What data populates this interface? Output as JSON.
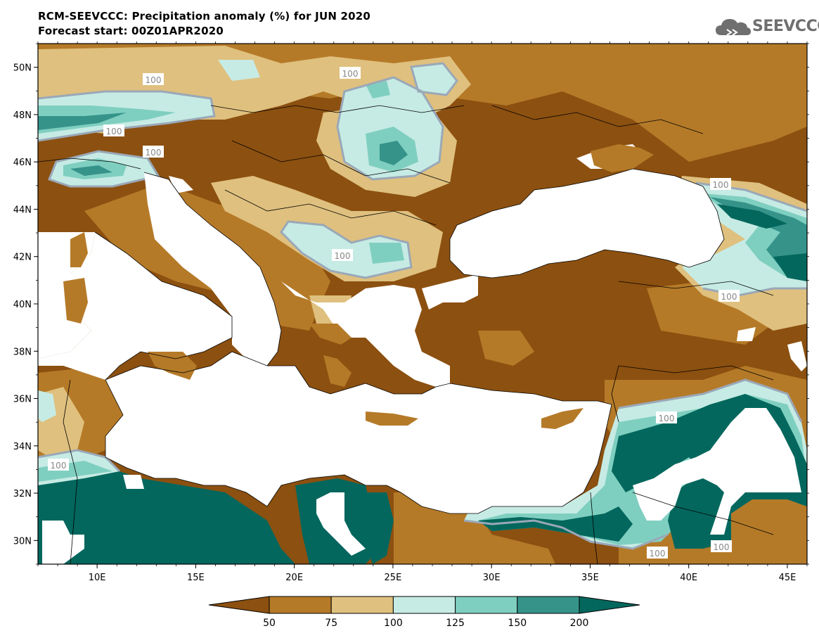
{
  "title": {
    "line1": "RCM-SEEVCCC: Precipitation anomaly (%) for JUN 2020",
    "line2": "Forecast start: 00Z01APR2020"
  },
  "logo": {
    "text": "SEEVCCC",
    "icon": "cloud-icon"
  },
  "map": {
    "lon_range": [
      7,
      46
    ],
    "lat_range": [
      29,
      51
    ],
    "lon_ticks": [
      "10E",
      "15E",
      "20E",
      "25E",
      "30E",
      "35E",
      "40E",
      "45E"
    ],
    "lat_ticks": [
      "50N",
      "48N",
      "46N",
      "44N",
      "42N",
      "40N",
      "38N",
      "36N",
      "34N",
      "32N",
      "30N"
    ],
    "contour_label": "100",
    "colors": {
      "below_50": "#8c5010",
      "50_75": "#b57a28",
      "75_100": "#dfc07e",
      "100_125": "#c6ebe4",
      "125_150": "#7fcfc0",
      "150_200": "#35938a",
      "above_200": "#03675d",
      "sea": "#ffffff",
      "contour_100": "#9aa8b8"
    }
  },
  "colorbar": {
    "labels": [
      "50",
      "75",
      "100",
      "125",
      "150",
      "200"
    ],
    "colors": [
      "#8c5010",
      "#b57a28",
      "#dfc07e",
      "#c6ebe4",
      "#7fcfc0",
      "#35938a",
      "#03675d"
    ]
  }
}
